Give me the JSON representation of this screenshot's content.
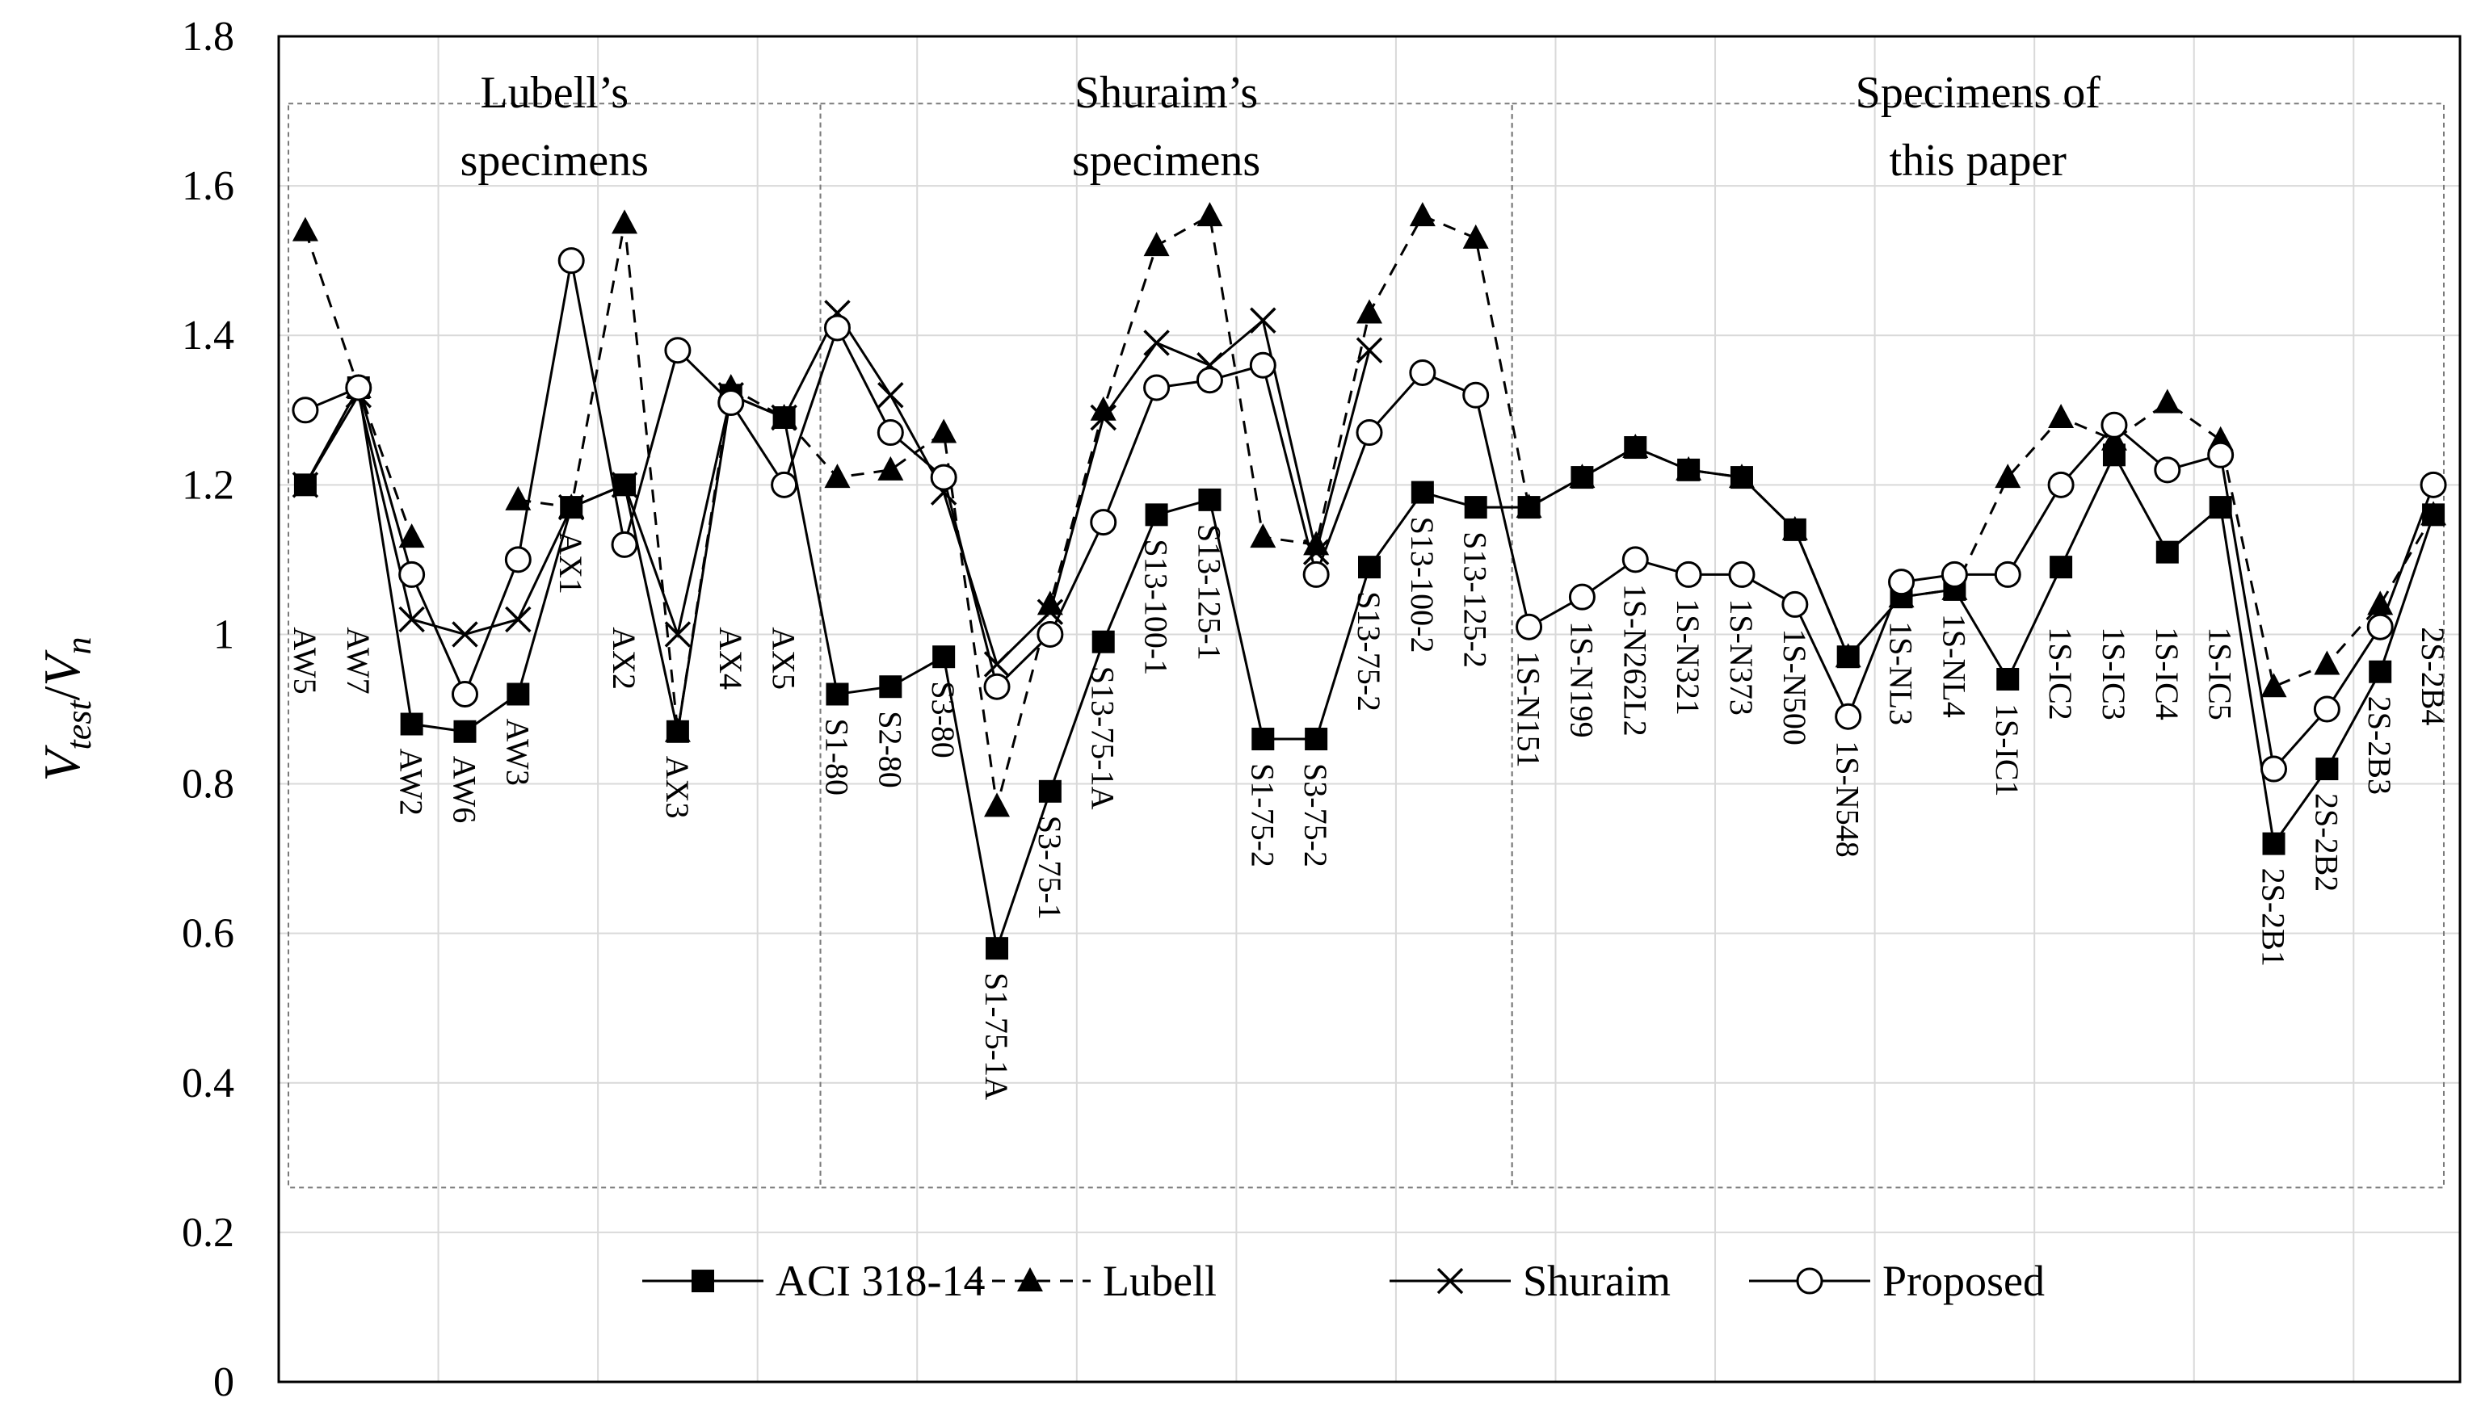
{
  "chart_data": {
    "type": "line",
    "title": "",
    "xlabel": "",
    "ylabel": "V_test / V_n",
    "ylabel_parts": {
      "v1": "V",
      "sub1": "test",
      "slash": "/",
      "v2": "V",
      "sub2": "n"
    },
    "ylim": [
      0,
      1.8
    ],
    "yticks": [
      "0",
      "0.2",
      "0.4",
      "0.6",
      "0.8",
      "1",
      "1.2",
      "1.4",
      "1.6",
      "1.8"
    ],
    "grid": true,
    "legend_position": "bottom-center",
    "categories": [
      "AW5",
      "AW7",
      "AW2",
      "AW6",
      "AW3",
      "AX1",
      "AX2",
      "AX3",
      "AX4",
      "AX5",
      "S1-80",
      "S2-80",
      "S3-80",
      "S1-75-1A",
      "S3-75-1",
      "S13-75-1A",
      "S13-100-1",
      "S13-125-1",
      "S1-75-2",
      "S3-75-2",
      "S13-75-2",
      "S13-100-2",
      "S13-125-2",
      "1S-N151",
      "1S-N199",
      "1S-N262L2",
      "1S-N321",
      "1S-N373",
      "1S-N500",
      "1S-N548",
      "1S-NL3",
      "1S-NL4",
      "1S-IC1",
      "1S-IC2",
      "1S-IC3",
      "1S-IC4",
      "1S-IC5",
      "2S-2B1",
      "2S-2B2",
      "2S-2B3",
      "2S-2B4"
    ],
    "series": [
      {
        "name": "ACI 318-14",
        "marker": "filled-square",
        "dash": "solid",
        "values": [
          1.2,
          1.33,
          0.88,
          0.87,
          0.92,
          1.17,
          1.2,
          0.87,
          1.32,
          1.29,
          0.92,
          0.93,
          0.97,
          0.58,
          0.79,
          0.99,
          1.16,
          1.18,
          0.86,
          0.86,
          1.09,
          1.19,
          1.17,
          1.17,
          1.21,
          1.25,
          1.22,
          1.21,
          1.14,
          0.97,
          1.05,
          1.06,
          0.94,
          1.09,
          1.24,
          1.11,
          1.17,
          0.72,
          0.82,
          0.95,
          1.16
        ]
      },
      {
        "name": "Lubell",
        "marker": "filled-triangle",
        "dash": "dashed",
        "values": [
          1.54,
          1.33,
          1.13,
          null,
          1.18,
          1.17,
          1.55,
          0.87,
          1.33,
          1.29,
          1.21,
          1.22,
          1.27,
          0.77,
          1.04,
          1.3,
          1.52,
          1.56,
          1.13,
          1.12,
          1.43,
          1.56,
          1.53,
          1.17,
          1.21,
          1.25,
          1.22,
          1.21,
          1.14,
          0.97,
          1.05,
          1.06,
          1.21,
          1.29,
          1.26,
          1.31,
          1.26,
          0.93,
          0.96,
          1.04,
          1.16
        ]
      },
      {
        "name": "Shuraim",
        "marker": "x",
        "dash": "solid",
        "values": [
          1.2,
          1.32,
          1.02,
          1.0,
          1.02,
          1.17,
          1.2,
          1.0,
          1.32,
          1.29,
          1.43,
          1.32,
          1.19,
          0.96,
          1.03,
          1.29,
          1.39,
          1.36,
          1.42,
          1.11,
          1.38,
          null,
          null,
          null,
          null,
          null,
          null,
          null,
          null,
          null,
          null,
          null,
          null,
          null,
          null,
          null,
          null,
          null,
          null,
          null,
          null
        ]
      },
      {
        "name": "Proposed",
        "marker": "open-circle",
        "dash": "solid",
        "values": [
          1.3,
          1.33,
          1.08,
          0.92,
          1.1,
          1.5,
          1.12,
          1.38,
          1.31,
          1.2,
          1.41,
          1.27,
          1.21,
          0.93,
          1.0,
          1.15,
          1.33,
          1.34,
          1.36,
          1.08,
          1.27,
          1.35,
          1.32,
          1.01,
          1.05,
          1.1,
          1.08,
          1.08,
          1.04,
          0.89,
          1.07,
          1.08,
          1.08,
          1.2,
          1.28,
          1.22,
          1.24,
          0.82,
          0.9,
          1.01,
          1.2
        ]
      }
    ],
    "groups": [
      {
        "line1": "Lubell’s",
        "line2": "specimens",
        "first": 0,
        "last": 9
      },
      {
        "line1": "Shuraim’s",
        "line2": "specimens",
        "first": 10,
        "last": 22
      },
      {
        "line1": "Specimens of",
        "line2": "this paper",
        "first": 23,
        "last": 40
      }
    ]
  }
}
